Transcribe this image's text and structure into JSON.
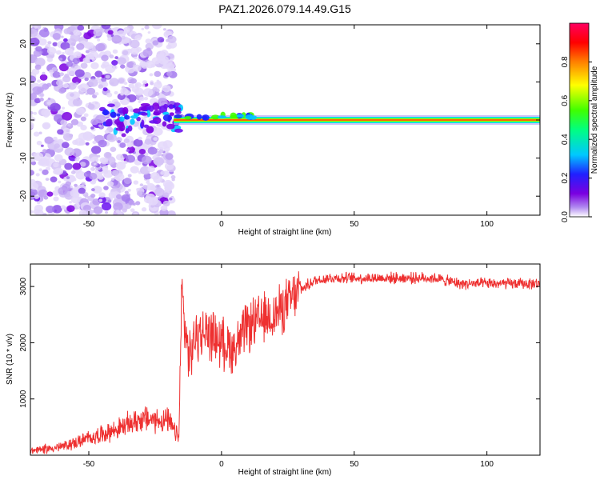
{
  "title": "PAZ1.2026.079.14.49.G15",
  "chart_data": [
    {
      "type": "heatmap",
      "xlabel": "Height of straight line (km)",
      "ylabel": "Frequency (Hz)",
      "xlim": [
        -72,
        120
      ],
      "ylim": [
        -25,
        25
      ],
      "xticks": [
        -50,
        0,
        50,
        100
      ],
      "yticks": [
        -20,
        -10,
        0,
        10,
        20
      ],
      "colorbar": {
        "label": "Normalized spectral amplitude",
        "range": [
          0,
          1
        ],
        "ticks": [
          "0.0",
          "0.2",
          "0.4",
          "0.6",
          "0.8"
        ],
        "colors": [
          "#ffffff",
          "#b088f0",
          "#7a00e0",
          "#2020ff",
          "#00c8ff",
          "#00ff80",
          "#40ff00",
          "#ffff00",
          "#ff8000",
          "#ff0000",
          "#ff0060"
        ]
      },
      "description_bands": [
        {
          "from_km": -72,
          "to_km": -18,
          "pattern": "scattered noise"
        },
        {
          "from_km": -18,
          "to_km": 120,
          "pattern": "narrow line at 0 Hz"
        }
      ]
    },
    {
      "type": "line",
      "xlabel": "Height of straight line (km)",
      "ylabel": "SNR (10 * v/v)",
      "xlim": [
        -72,
        120
      ],
      "ylim": [
        0,
        3400
      ],
      "xticks": [
        -50,
        0,
        50,
        100
      ],
      "yticks": [
        1000,
        2000,
        3000
      ],
      "color": "#ee3030",
      "x": [
        -72,
        -60,
        -50,
        -40,
        -30,
        -20,
        -16,
        -15,
        -14,
        -12,
        -10,
        -5,
        0,
        5,
        10,
        15,
        20,
        25,
        30,
        35,
        40,
        50,
        60,
        70,
        80,
        90,
        100,
        110,
        120
      ],
      "values": [
        80,
        150,
        300,
        450,
        650,
        600,
        300,
        3050,
        2300,
        1700,
        2100,
        2200,
        2000,
        1900,
        2300,
        2400,
        2500,
        2700,
        2950,
        3100,
        3150,
        3150,
        3150,
        3150,
        3150,
        3050,
        3050,
        3050,
        3050
      ]
    }
  ]
}
